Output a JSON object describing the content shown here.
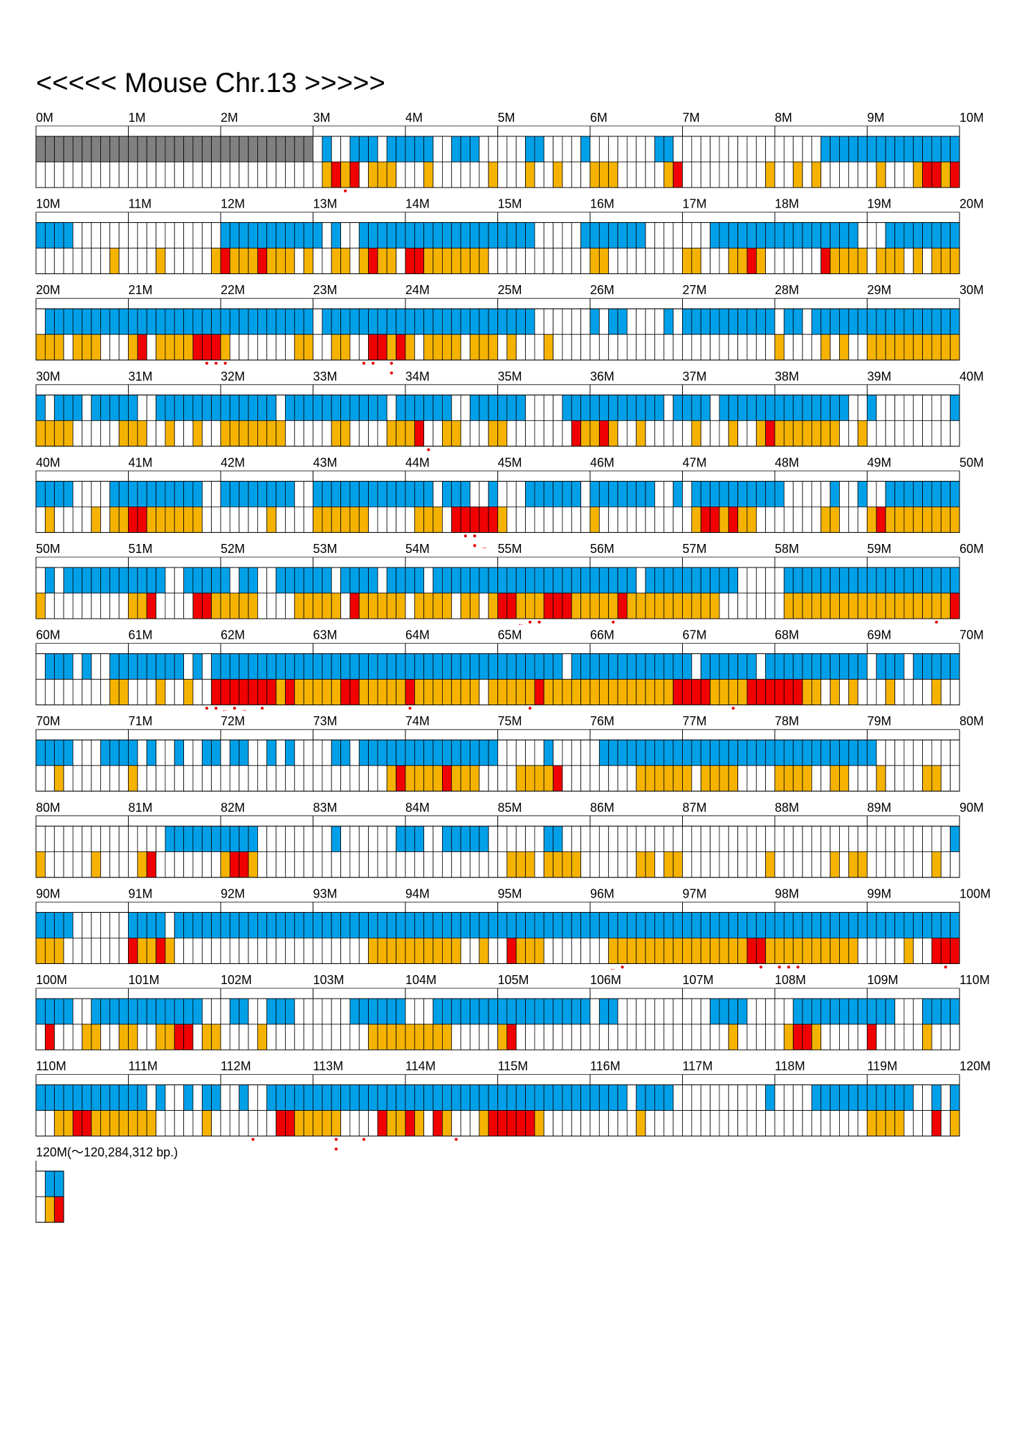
{
  "title": "<<<<< Mouse Chr.13 >>>>>",
  "end_label": "120M(〜120,284,312 bp.)",
  "colors": {
    "upper": "#00a0e9",
    "lower": "#f5b300",
    "hit": "#f00000",
    "gap": "#808080",
    "grid": "#000000",
    "marker": "#e60000"
  },
  "rows": [
    {
      "labels": [
        "0M",
        "1M",
        "2M",
        "3M",
        "4M",
        "5M",
        "6M",
        "7M",
        "8M",
        "9M",
        "10M"
      ],
      "upper": "GGGGGGGGGGGGGGGGGGGGGGGGGGGGGG.B..BBB.BBBBB..BBB.....BB....B.......BB................BBBBBBBBBBBBBBBBBBB",
      "lower": "...............................YRYR.YYY...Y......Y...Y..Y...YYY.....YR.........Y..Y.Y......Y...YRRYRYYYY.",
      "markers": [
        {
          "text": "•",
          "slot": 33
        }
      ],
      "markers2": []
    },
    {
      "labels": [
        "10M",
        "11M",
        "12M",
        "13M",
        "14M",
        "15M",
        "16M",
        "17M",
        "18M",
        "19M",
        "20M"
      ],
      "upper": "BBBB................BBBBBBBBBBB.B..BBBBBBBBBBBBBBBBBBB.....BBBBBBB.......BBBBBBBBBBBBBBBB...BBBBBBBBBB",
      "lower": "........Y....Y.....YRYYYRYYY.Y..YY.YRYY.RRYYYYYYY...........YY........YY...YYRY......RYYYY.YYY.Y.YYYY",
      "markers": [],
      "markers2": []
    },
    {
      "labels": [
        "20M",
        "21M",
        "22M",
        "23M",
        "24M",
        "25M",
        "26M",
        "27M",
        "28M",
        "29M",
        "30M"
      ],
      "upper": ".BBBBBBBBBBBBBBBBBBBBBBBBBBBBB.BBBBBBBBBBBBBBBBBBBBBBB......B.BB....B.BBBBBBBBBB.BB.BBBBBBBBBBBBBBBB",
      "lower": "YYY.YYY...YR.YYYYRRRY.......YY..YY..RRYRY.YYYY.YYY.Y...Y........................Y....Y.Y..YYYYYYYYYYYYY",
      "markers": [
        {
          "text": "•",
          "slot": 18
        },
        {
          "text": "•",
          "slot": 19
        },
        {
          "text": "•",
          "slot": 20
        },
        {
          "text": "•",
          "slot": 35
        },
        {
          "text": "•",
          "slot": 36
        },
        {
          "text": "•",
          "slot": 38
        }
      ],
      "markers2": [
        {
          "text": "•",
          "slot": 38
        }
      ]
    },
    {
      "labels": [
        "30M",
        "31M",
        "32M",
        "33M",
        "34M",
        "35M",
        "36M",
        "37M",
        "38M",
        "39M",
        "40M"
      ],
      "upper": "B.BBB.BBBBB..BBBBBBBBBBBBB.BBBBBBBBBBB.BBBBBB..BBBBBB....BBBBBBBBBBB.BBBB.BBBBBBBBBBBBBB..B........B.",
      "lower": "YYYY.....YYY..Y..Y..YYYYYYY.....YY....YYYR..YY...YY.......RYYRY..Y.....Y...Y..YRYYYYYYY..Y..........",
      "markers": [
        {
          "text": "•",
          "slot": 42
        }
      ],
      "markers2": []
    },
    {
      "labels": [
        "40M",
        "41M",
        "42M",
        "43M",
        "44M",
        "45M",
        "46M",
        "47M",
        "48M",
        "49M",
        "50M"
      ],
      "upper": "BBBB....BBBBBBBBBB..BBBBBBBB..BBBBBBBBBBBBB.BBB..B...BBBBBB.BBBBBBB..B.BBBBBBBBBB.....B..B..BBBBBBBBBBBBBBBBBB",
      "lower": ".Y....Y.YYRRYYYYYY.......Y....YYYYYY.....YYY.RRRRRY.........Y..........YRRYRYY.......YY...YRYYYYYYYYYYYY.",
      "markers": [
        {
          "text": "•",
          "slot": 46
        },
        {
          "text": "•",
          "slot": 47
        }
      ],
      "markers2": [
        {
          "text": "•",
          "slot": 47
        },
        {
          "text": "→",
          "slot": 48
        }
      ]
    },
    {
      "labels": [
        "50M",
        "51M",
        "52M",
        "53M",
        "54M",
        "55M",
        "56M",
        "57M",
        "58M",
        "59M",
        "60M"
      ],
      "upper": ".B.BBBBBBBBBBB..BBBBB.BB..BBBBBB.BBBB.BBBB.BBBBBBBBBBBBBBBBBBBBBB.BBBBBBBBBB.....BBBBBBBBBBBBBBBBBBBBBBBBB",
      "lower": "Y.........YYR....RRYYYYY....YYYYY.RYYYYY.YYYY.YY.YRRYYYRRRYYYYYRYYYYYYYYYY.......YYYYYYYYYYYYYYYYYYRRY",
      "markers": [
        {
          "text": "←",
          "slot": 52
        },
        {
          "text": "•",
          "slot": 53
        },
        {
          "text": "•",
          "slot": 54
        },
        {
          "text": "•",
          "slot": 62
        },
        {
          "text": "•",
          "slot": 97
        }
      ],
      "markers2": []
    },
    {
      "labels": [
        "60M",
        "61M",
        "62M",
        "63M",
        "64M",
        "65M",
        "66M",
        "67M",
        "68M",
        "69M",
        "70M"
      ],
      "upper": ".BBB.B..BBBBBBBB.B.BBBBBBBBBBBBBBBBBBBBBBBBBBBBBBBBBBBBBB.BBBBBBBBBBBBB.BBBBBB.BBBBBBBBBBB.BBB.BBBBBBB..BBBB",
      "lower": "........YY...Y..Y..RRRRRRRYRYYYYYRRYYYYYRYYYYYYY.YYYYYRYYYYYYYYYYYYYYRRRRYYYYRRRRRRYY.Y.Y...Y....Y...Y..YY",
      "markers": [
        {
          "text": "•",
          "slot": 18
        },
        {
          "text": "•",
          "slot": 19
        },
        {
          "text": "←",
          "slot": 20
        },
        {
          "text": "•",
          "slot": 21
        },
        {
          "text": "→",
          "slot": 22
        },
        {
          "text": "•",
          "slot": 24
        },
        {
          "text": "•",
          "slot": 40
        },
        {
          "text": "•",
          "slot": 53
        },
        {
          "text": "•",
          "slot": 75
        }
      ],
      "markers2": []
    },
    {
      "labels": [
        "70M",
        "71M",
        "72M",
        "73M",
        "74M",
        "75M",
        "76M",
        "77M",
        "78M",
        "79M",
        "80M"
      ],
      "upper": "BBBB...BBBB.B..B..BB.BB..B.B....BB.BBBBBBBBBBBBBBB.....B.....BBBBBBBBBBBBBBBBBBBBBBBBBBBBBB...........",
      "lower": "..Y.......Y...........................YRYYYYRYYY....YYYYR........YYYYYY.YYYY....YYYY..YY...Y....YY.....Y",
      "markers": [],
      "markers2": []
    },
    {
      "labels": [
        "80M",
        "81M",
        "82M",
        "83M",
        "84M",
        "85M",
        "86M",
        "87M",
        "88M",
        "89M",
        "90M"
      ],
      "upper": "..............BBBBBBBBBB........B......BBB..BBBBB......BB..........................................BBBBBBBBBBB",
      "lower": "Y.....Y....YR.......YRRY...........................YYY.YYYY......YY.YY.........Y......Y.YY.......Y...Y.YYYY",
      "markers": [],
      "markers2": []
    },
    {
      "labels": [
        "90M",
        "91M",
        "92M",
        "93M",
        "94M",
        "95M",
        "96M",
        "97M",
        "98M",
        "99M",
        "100M"
      ],
      "upper": "BBBB......BBBB.BBBBBBBBBBBBBBBBBBBBBBBBBBBBBBBBBBBBBBBBBBBBBBBBBBBBBBBBBBBBBBBBBBBBBBBBBBBBBBBBBBBBBBBBBBB",
      "lower": "YYY.......RYYRY.....................YYYYYYYYYY..Y..RYYY.......YYYYYYYYYYYYYYYRRYYYYYYYYYY.....Y..RRRRRRYY.R..Y.RRRY",
      "markers": [
        {
          "text": "←",
          "slot": 62
        },
        {
          "text": "•",
          "slot": 63
        },
        {
          "text": "•",
          "slot": 78
        },
        {
          "text": "•",
          "slot": 80
        },
        {
          "text": "•",
          "slot": 81
        },
        {
          "text": "•",
          "slot": 82
        },
        {
          "text": "•",
          "slot": 98
        }
      ],
      "markers2": []
    },
    {
      "labels": [
        "100M",
        "101M",
        "102M",
        "103M",
        "104M",
        "105M",
        "106M",
        "107M",
        "108M",
        "109M",
        "110M"
      ],
      "upper": "BBBB..BBBBBBBBBBBB...BB..BBB......BBBBBB...BBBBBBBBBBBBBBBBB.BB..........BBBB.....BBBBBBBBBBB...BBBBBBBBBBB",
      "lower": ".R...YY..YY..YYRR.YY....Y...........YYYYYYYYY.....YR.......................Y.....YRRY.....R.....Y.....YY",
      "markers": [],
      "markers2": []
    },
    {
      "labels": [
        "110M",
        "111M",
        "112M",
        "113M",
        "114M",
        "115M",
        "116M",
        "117M",
        "118M",
        "119M",
        "120M"
      ],
      "upper": "BBBBBBBBBBBB.B..B.BB..B..BBBBBBBBBBBBBBBBBBBBBBBBBBBBBBBBBBBBBBB.BBBB..........B....BBBBBBBBBBB..B.B..BBBB.",
      "lower": "..YYRRYYYYYYY.....Y.......RRYYYYY....RYYRY.RY...YRRRRRY..........Y........................YYYY...R.YY.YY.YYY.YY...Y.Y",
      "markers": [
        {
          "text": "•",
          "slot": 23
        },
        {
          "text": "•",
          "slot": 32
        },
        {
          "text": "•",
          "slot": 35
        },
        {
          "text": "•",
          "slot": 45
        }
      ],
      "markers2": [
        {
          "text": "•",
          "slot": 32
        }
      ]
    }
  ],
  "last_row": {
    "upper": ".BB",
    "lower": ".YR"
  }
}
